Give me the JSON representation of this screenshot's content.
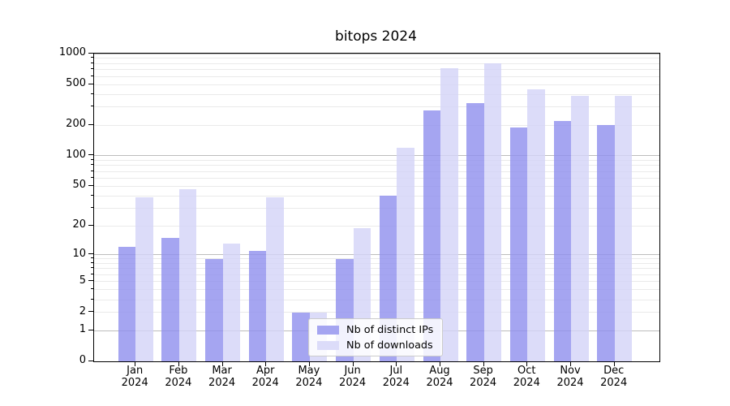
{
  "title": "bitops 2024",
  "legend": {
    "items": [
      {
        "label": "Nb of distinct IPs",
        "swatch": "#a5a5f1"
      },
      {
        "label": "Nb of downloads",
        "swatch": "#dcdcf9"
      }
    ]
  },
  "chart_data": {
    "type": "bar",
    "title": "bitops 2024",
    "xlabel": "",
    "ylabel": "",
    "scale": "log1p",
    "ylim": [
      0,
      1000
    ],
    "grid": true,
    "legend_position": "lower center",
    "categories": [
      "Jan",
      "Feb",
      "Mar",
      "Apr",
      "May",
      "Jun",
      "Jul",
      "Aug",
      "Sep",
      "Oct",
      "Nov",
      "Dec"
    ],
    "year": "2024",
    "yticks": [
      0,
      1,
      2,
      5,
      10,
      20,
      50,
      100,
      200,
      500,
      1000
    ],
    "minor_grid_values": [
      2,
      3,
      4,
      5,
      6,
      7,
      8,
      9,
      20,
      30,
      40,
      50,
      60,
      70,
      80,
      90,
      200,
      300,
      400,
      500,
      600,
      700,
      800,
      900
    ],
    "major_grid_values": [
      1,
      10,
      100,
      1000
    ],
    "series": [
      {
        "name": "Nb of distinct IPs",
        "fill": "rgba(142,142,238,0.8)",
        "swatch": "#a5a5f1",
        "values": [
          12,
          15,
          9,
          11,
          2,
          9,
          40,
          280,
          330,
          190,
          220,
          200
        ]
      },
      {
        "name": "Nb of downloads",
        "fill": "rgba(211,211,248,0.8)",
        "swatch": "#dcdcf9",
        "values": [
          39,
          47,
          13,
          39,
          2,
          19,
          120,
          720,
          800,
          445,
          390,
          390
        ]
      }
    ]
  }
}
